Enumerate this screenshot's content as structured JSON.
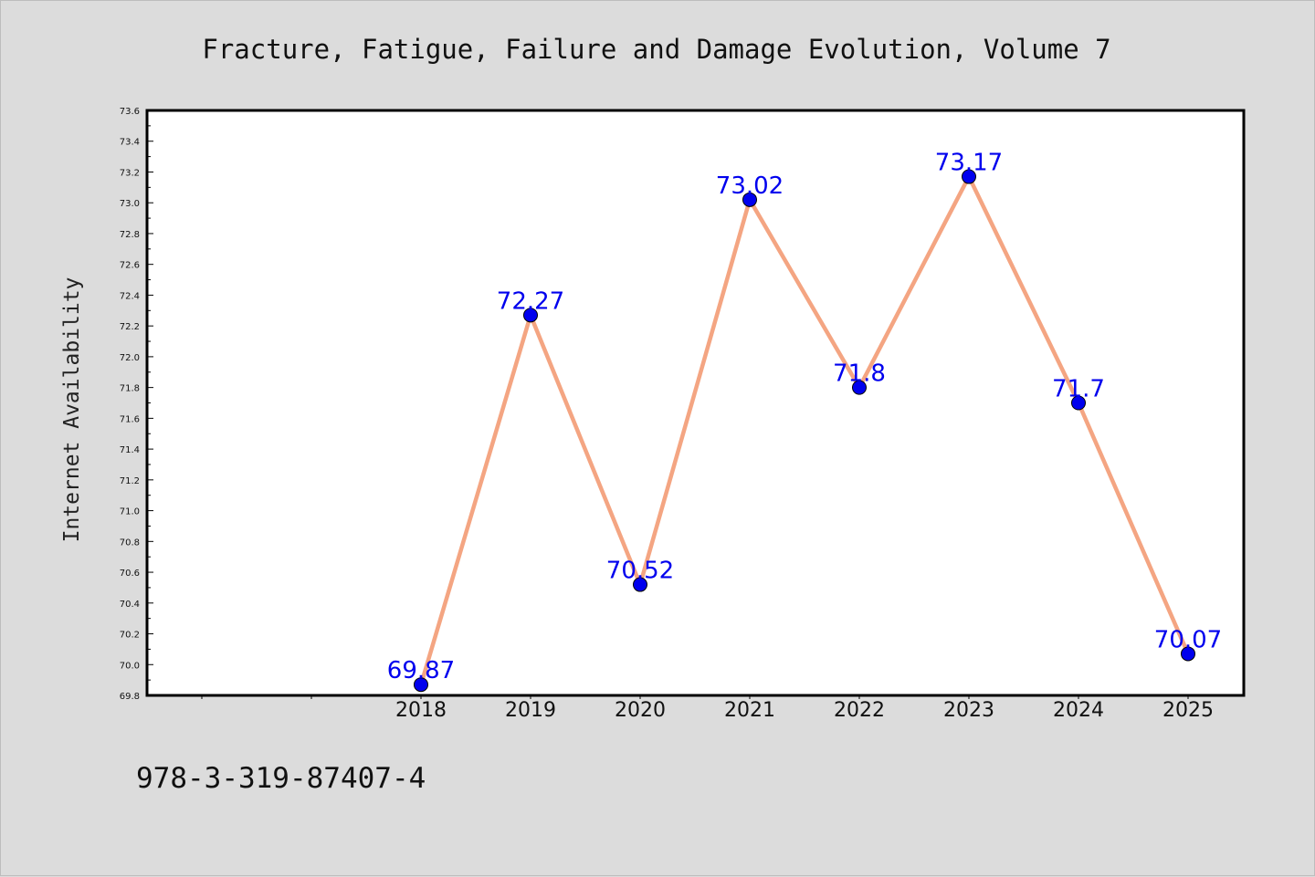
{
  "chart_data": {
    "type": "line",
    "title": "Fracture, Fatigue, Failure and Damage Evolution, Volume 7",
    "xlabel": "",
    "ylabel": "Internet Availability",
    "categories": [
      "2018",
      "2019",
      "2020",
      "2021",
      "2022",
      "2023",
      "2024",
      "2025"
    ],
    "values": [
      69.87,
      72.27,
      70.52,
      73.02,
      71.8,
      73.17,
      71.7,
      70.07
    ],
    "data_labels": [
      "69.87",
      "72.27",
      "70.52",
      "73.02",
      "71.8",
      "73.17",
      "71.7",
      "70.07"
    ],
    "ylim": [
      69.8,
      73.6
    ],
    "yticks": [
      "69.8",
      "70.0",
      "70.2",
      "70.4",
      "70.6",
      "70.8",
      "71.0",
      "71.2",
      "71.4",
      "71.6",
      "71.8",
      "72.0",
      "72.2",
      "72.4",
      "72.6",
      "72.8",
      "73.0",
      "73.2",
      "73.4",
      "73.6"
    ],
    "grid": false,
    "line_color": "#f4a582",
    "marker_color": "#0000ee",
    "label_color": "#0000ee"
  },
  "footer": {
    "isbn": "978-3-319-87407-4"
  }
}
